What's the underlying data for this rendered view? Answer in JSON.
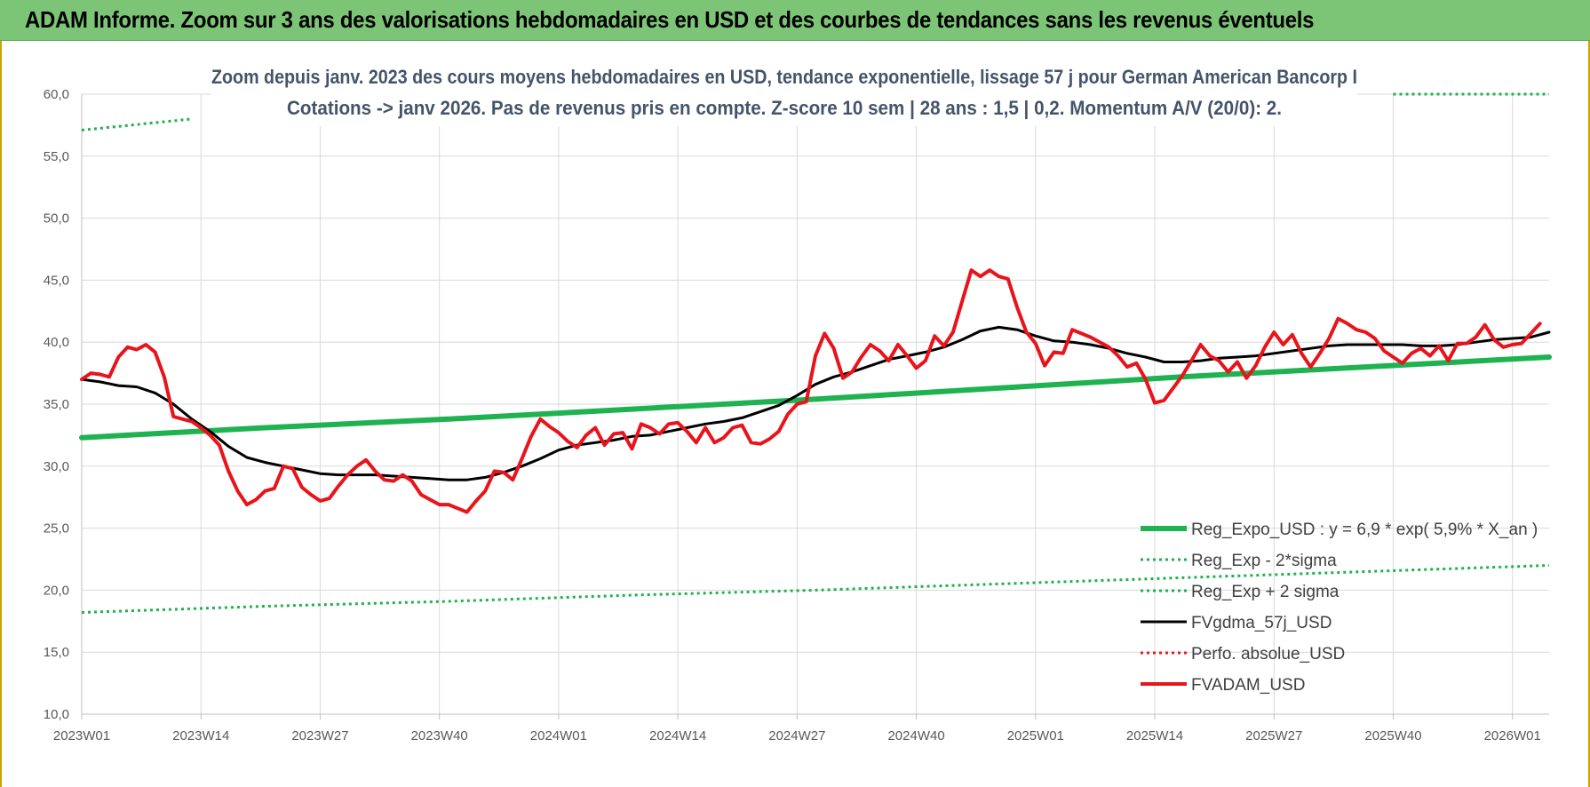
{
  "header": {
    "title": "ADAM Informe. Zoom sur 3 ans des valorisations hebdomadaires en USD et des courbes de tendances sans les revenus éventuels"
  },
  "chart_data": {
    "type": "line",
    "title": "Zoom depuis janv. 2023 des cours moyens hebdomadaires en USD, tendance exponentielle, lissage 57 j pour German American Bancorp I",
    "subtitle": "Cotations -> janv 2026. Pas de revenus pris en compte. Z-score 10 sem | 28 ans : 1,5 | 0,2. Momentum A/V (20/0): 2.",
    "xlabel": "",
    "ylabel": "",
    "ylim": [
      10,
      60
    ],
    "yticks": [
      "10,0",
      "15,0",
      "20,0",
      "25,0",
      "30,0",
      "35,0",
      "40,0",
      "45,0",
      "50,0",
      "55,0",
      "60,0"
    ],
    "xlim": [
      0,
      160
    ],
    "xticks": [
      {
        "x": 0,
        "label": "2023W01"
      },
      {
        "x": 13,
        "label": "2023W14"
      },
      {
        "x": 26,
        "label": "2023W27"
      },
      {
        "x": 39,
        "label": "2023W40"
      },
      {
        "x": 52,
        "label": "2024W01"
      },
      {
        "x": 65,
        "label": "2024W14"
      },
      {
        "x": 78,
        "label": "2024W27"
      },
      {
        "x": 91,
        "label": "2024W40"
      },
      {
        "x": 104,
        "label": "2025W01"
      },
      {
        "x": 117,
        "label": "2025W14"
      },
      {
        "x": 130,
        "label": "2025W27"
      },
      {
        "x": 143,
        "label": "2025W40"
      },
      {
        "x": 156,
        "label": "2026W01"
      }
    ],
    "grid": true,
    "legend_position": "bottom-right",
    "series": [
      {
        "name": "Reg_Expo_USD : y = 6,9 * exp( 5,9% *  X_an )",
        "color": "#1fb250",
        "style": "solid-thick",
        "points": [
          [
            0,
            32.3
          ],
          [
            20,
            33.1
          ],
          [
            40,
            33.8
          ],
          [
            60,
            34.6
          ],
          [
            80,
            35.4
          ],
          [
            100,
            36.3
          ],
          [
            120,
            37.2
          ],
          [
            140,
            38.0
          ],
          [
            160,
            38.8
          ]
        ]
      },
      {
        "name": "Reg_Exp - 2*sigma",
        "color": "#1fb250",
        "style": "dotted",
        "points": [
          [
            0,
            18.2
          ],
          [
            20,
            18.7
          ],
          [
            40,
            19.1
          ],
          [
            60,
            19.6
          ],
          [
            80,
            20.0
          ],
          [
            100,
            20.5
          ],
          [
            120,
            21.0
          ],
          [
            140,
            21.5
          ],
          [
            160,
            22.0
          ]
        ]
      },
      {
        "name": "Reg_Exp + 2 sigma",
        "color": "#1fb250",
        "style": "dotted",
        "points": [
          [
            0,
            57.1
          ],
          [
            12,
            58.0
          ]
        ],
        "points_right": [
          [
            143,
            60.0
          ],
          [
            160,
            60.0
          ]
        ]
      },
      {
        "name": "FVgdma_57j_USD",
        "color": "#000000",
        "style": "solid",
        "points": [
          [
            0,
            37.0
          ],
          [
            2,
            36.8
          ],
          [
            4,
            36.5
          ],
          [
            6,
            36.4
          ],
          [
            8,
            35.9
          ],
          [
            10,
            35.0
          ],
          [
            12,
            33.8
          ],
          [
            14,
            32.8
          ],
          [
            16,
            31.6
          ],
          [
            18,
            30.7
          ],
          [
            20,
            30.3
          ],
          [
            22,
            30.0
          ],
          [
            24,
            29.7
          ],
          [
            26,
            29.4
          ],
          [
            28,
            29.3
          ],
          [
            30,
            29.3
          ],
          [
            32,
            29.3
          ],
          [
            34,
            29.2
          ],
          [
            36,
            29.1
          ],
          [
            38,
            29.0
          ],
          [
            40,
            28.9
          ],
          [
            42,
            28.9
          ],
          [
            44,
            29.1
          ],
          [
            46,
            29.5
          ],
          [
            48,
            30.0
          ],
          [
            50,
            30.6
          ],
          [
            52,
            31.3
          ],
          [
            54,
            31.7
          ],
          [
            56,
            31.9
          ],
          [
            58,
            32.1
          ],
          [
            60,
            32.4
          ],
          [
            62,
            32.5
          ],
          [
            64,
            32.8
          ],
          [
            66,
            33.1
          ],
          [
            68,
            33.4
          ],
          [
            70,
            33.6
          ],
          [
            72,
            33.9
          ],
          [
            74,
            34.4
          ],
          [
            76,
            34.9
          ],
          [
            78,
            35.7
          ],
          [
            80,
            36.6
          ],
          [
            82,
            37.2
          ],
          [
            84,
            37.6
          ],
          [
            86,
            38.1
          ],
          [
            88,
            38.6
          ],
          [
            90,
            38.9
          ],
          [
            92,
            39.2
          ],
          [
            94,
            39.6
          ],
          [
            96,
            40.2
          ],
          [
            98,
            40.9
          ],
          [
            100,
            41.2
          ],
          [
            102,
            41.0
          ],
          [
            104,
            40.5
          ],
          [
            106,
            40.1
          ],
          [
            108,
            40.0
          ],
          [
            110,
            39.8
          ],
          [
            112,
            39.5
          ],
          [
            114,
            39.1
          ],
          [
            116,
            38.8
          ],
          [
            118,
            38.4
          ],
          [
            120,
            38.4
          ],
          [
            122,
            38.5
          ],
          [
            124,
            38.7
          ],
          [
            126,
            38.8
          ],
          [
            128,
            38.9
          ],
          [
            130,
            39.1
          ],
          [
            132,
            39.3
          ],
          [
            134,
            39.5
          ],
          [
            136,
            39.7
          ],
          [
            138,
            39.8
          ],
          [
            140,
            39.8
          ],
          [
            142,
            39.8
          ],
          [
            144,
            39.8
          ],
          [
            146,
            39.7
          ],
          [
            148,
            39.7
          ],
          [
            150,
            39.8
          ],
          [
            152,
            40.0
          ],
          [
            154,
            40.2
          ],
          [
            156,
            40.3
          ],
          [
            158,
            40.4
          ],
          [
            160,
            40.8
          ]
        ]
      },
      {
        "name": "Perfo. absolue_USD",
        "color": "#e02020",
        "style": "dotted",
        "points": []
      },
      {
        "name": "FVADAM_USD",
        "color": "#e8141b",
        "style": "solid-thick",
        "points": [
          [
            0,
            37.0
          ],
          [
            1,
            37.5
          ],
          [
            2,
            37.4
          ],
          [
            3,
            37.2
          ],
          [
            4,
            38.8
          ],
          [
            5,
            39.6
          ],
          [
            6,
            39.4
          ],
          [
            7,
            39.8
          ],
          [
            8,
            39.2
          ],
          [
            9,
            37.2
          ],
          [
            10,
            34.0
          ],
          [
            11,
            33.8
          ],
          [
            12,
            33.6
          ],
          [
            13,
            33.1
          ],
          [
            14,
            32.5
          ],
          [
            15,
            31.7
          ],
          [
            16,
            29.6
          ],
          [
            17,
            28.0
          ],
          [
            18,
            26.9
          ],
          [
            19,
            27.3
          ],
          [
            20,
            28.0
          ],
          [
            21,
            28.2
          ],
          [
            22,
            30.0
          ],
          [
            23,
            29.8
          ],
          [
            24,
            28.3
          ],
          [
            25,
            27.7
          ],
          [
            26,
            27.2
          ],
          [
            27,
            27.4
          ],
          [
            28,
            28.4
          ],
          [
            29,
            29.3
          ],
          [
            30,
            30.0
          ],
          [
            31,
            30.5
          ],
          [
            32,
            29.6
          ],
          [
            33,
            28.9
          ],
          [
            34,
            28.8
          ],
          [
            35,
            29.3
          ],
          [
            36,
            28.8
          ],
          [
            37,
            27.7
          ],
          [
            38,
            27.3
          ],
          [
            39,
            26.9
          ],
          [
            40,
            26.9
          ],
          [
            41,
            26.6
          ],
          [
            42,
            26.3
          ],
          [
            43,
            27.2
          ],
          [
            44,
            28.0
          ],
          [
            45,
            29.6
          ],
          [
            46,
            29.5
          ],
          [
            47,
            28.9
          ],
          [
            48,
            30.6
          ],
          [
            49,
            32.4
          ],
          [
            50,
            33.8
          ],
          [
            51,
            33.2
          ],
          [
            52,
            32.7
          ],
          [
            53,
            32.0
          ],
          [
            54,
            31.5
          ],
          [
            55,
            32.5
          ],
          [
            56,
            33.1
          ],
          [
            57,
            31.7
          ],
          [
            58,
            32.6
          ],
          [
            59,
            32.7
          ],
          [
            60,
            31.4
          ],
          [
            61,
            33.4
          ],
          [
            62,
            33.1
          ],
          [
            63,
            32.6
          ],
          [
            64,
            33.4
          ],
          [
            65,
            33.5
          ],
          [
            66,
            32.8
          ],
          [
            67,
            31.9
          ],
          [
            68,
            33.1
          ],
          [
            69,
            31.9
          ],
          [
            70,
            32.3
          ],
          [
            71,
            33.1
          ],
          [
            72,
            33.3
          ],
          [
            73,
            31.9
          ],
          [
            74,
            31.8
          ],
          [
            75,
            32.2
          ],
          [
            76,
            32.8
          ],
          [
            77,
            34.2
          ],
          [
            78,
            35.0
          ],
          [
            79,
            35.2
          ],
          [
            80,
            38.9
          ],
          [
            81,
            40.7
          ],
          [
            82,
            39.5
          ],
          [
            83,
            37.1
          ],
          [
            84,
            37.6
          ],
          [
            85,
            38.8
          ],
          [
            86,
            39.8
          ],
          [
            87,
            39.3
          ],
          [
            88,
            38.5
          ],
          [
            89,
            39.8
          ],
          [
            90,
            38.9
          ],
          [
            91,
            37.9
          ],
          [
            92,
            38.5
          ],
          [
            93,
            40.5
          ],
          [
            94,
            39.7
          ],
          [
            95,
            40.8
          ],
          [
            96,
            43.3
          ],
          [
            97,
            45.8
          ],
          [
            98,
            45.3
          ],
          [
            99,
            45.8
          ],
          [
            100,
            45.3
          ],
          [
            101,
            45.1
          ],
          [
            102,
            42.8
          ],
          [
            103,
            40.8
          ],
          [
            104,
            39.9
          ],
          [
            105,
            38.1
          ],
          [
            106,
            39.2
          ],
          [
            107,
            39.1
          ],
          [
            108,
            41.0
          ],
          [
            109,
            40.7
          ],
          [
            110,
            40.4
          ],
          [
            111,
            40.0
          ],
          [
            112,
            39.6
          ],
          [
            113,
            38.9
          ],
          [
            114,
            38.0
          ],
          [
            115,
            38.3
          ],
          [
            116,
            37.0
          ],
          [
            117,
            35.1
          ],
          [
            118,
            35.3
          ],
          [
            119,
            36.3
          ],
          [
            120,
            37.3
          ],
          [
            121,
            38.5
          ],
          [
            122,
            39.8
          ],
          [
            123,
            38.9
          ],
          [
            124,
            38.5
          ],
          [
            125,
            37.6
          ],
          [
            126,
            38.4
          ],
          [
            127,
            37.1
          ],
          [
            128,
            38.1
          ],
          [
            129,
            39.6
          ],
          [
            130,
            40.8
          ],
          [
            131,
            39.8
          ],
          [
            132,
            40.6
          ],
          [
            133,
            39.1
          ],
          [
            134,
            38.0
          ],
          [
            135,
            39.1
          ],
          [
            136,
            40.3
          ],
          [
            137,
            41.9
          ],
          [
            138,
            41.5
          ],
          [
            139,
            41.0
          ],
          [
            140,
            40.8
          ],
          [
            141,
            40.3
          ],
          [
            142,
            39.3
          ],
          [
            143,
            38.8
          ],
          [
            144,
            38.3
          ],
          [
            145,
            39.1
          ],
          [
            146,
            39.5
          ],
          [
            147,
            38.9
          ],
          [
            148,
            39.7
          ],
          [
            149,
            38.5
          ],
          [
            150,
            39.9
          ],
          [
            151,
            39.9
          ],
          [
            152,
            40.4
          ],
          [
            153,
            41.4
          ],
          [
            154,
            40.2
          ],
          [
            155,
            39.6
          ],
          [
            156,
            39.8
          ],
          [
            157,
            39.9
          ],
          [
            158,
            40.7
          ],
          [
            159,
            41.5
          ]
        ]
      }
    ]
  }
}
